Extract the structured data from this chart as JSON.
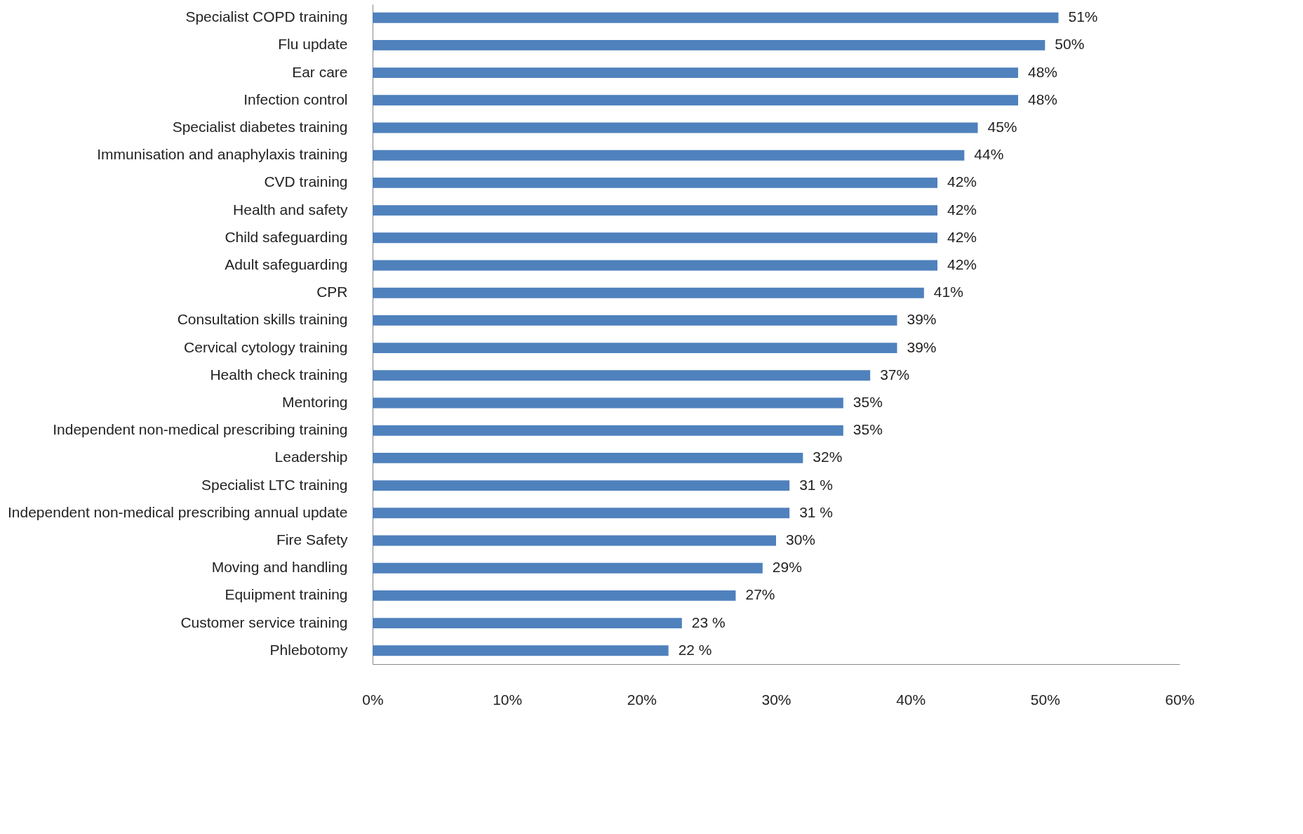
{
  "chart_data": {
    "type": "bar",
    "orientation": "horizontal",
    "categories": [
      "Specialist COPD training",
      "Flu update",
      "Ear care",
      "Infection control",
      "Specialist diabetes training",
      "Immunisation and anaphylaxis training",
      "CVD training",
      "Health and safety",
      "Child safeguarding",
      "Adult safeguarding",
      "CPR",
      "Consultation skills training",
      "Cervical cytology training",
      "Health check training",
      "Mentoring",
      "Independent non-medical prescribing training",
      "Leadership",
      "Specialist LTC training",
      "Independent non-medical prescribing annual update",
      "Fire Safety",
      "Moving and handling",
      "Equipment training",
      "Customer service training",
      "Phlebotomy"
    ],
    "values": [
      51,
      50,
      48,
      48,
      45,
      44,
      42,
      42,
      42,
      42,
      41,
      39,
      39,
      37,
      35,
      35,
      32,
      31,
      31,
      30,
      29,
      27,
      23,
      22
    ],
    "value_labels": [
      "51%",
      "50%",
      "48%",
      "48%",
      "45%",
      "44%",
      "42%",
      "42%",
      "42%",
      "42%",
      "41%",
      "39%",
      "39%",
      "37%",
      "35%",
      "35%",
      "32%",
      "31 %",
      "31 %",
      "30%",
      "29%",
      "27%",
      "23 %",
      "22 %"
    ],
    "color": "#4f81bd",
    "xlim": [
      0,
      60
    ],
    "xticks": [
      {
        "value": 0,
        "label": "0%"
      },
      {
        "value": 10,
        "label": "10%"
      },
      {
        "value": 20,
        "label": "20%"
      },
      {
        "value": 30,
        "label": "30%"
      },
      {
        "value": 40,
        "label": "40%"
      },
      {
        "value": 50,
        "label": "50%"
      },
      {
        "value": 60,
        "label": "60%"
      }
    ],
    "grid": false
  }
}
